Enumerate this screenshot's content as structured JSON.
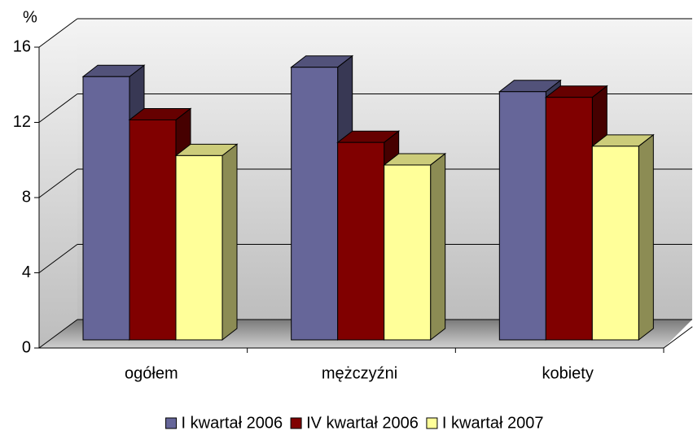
{
  "chart_data": {
    "type": "bar3d",
    "y_label": "%",
    "categories": [
      "ogółem",
      "mężczyźni",
      "kobiety"
    ],
    "series": [
      {
        "name": "I kwartał 2006",
        "color": "#666699",
        "values": [
          14.0,
          14.5,
          13.2
        ]
      },
      {
        "name": "IV kwartał 2006",
        "color": "#800000",
        "values": [
          11.7,
          10.5,
          12.9
        ]
      },
      {
        "name": "I kwartał 2007",
        "color": "#ffff99",
        "values": [
          9.8,
          9.3,
          10.3
        ]
      }
    ],
    "ylim": [
      0,
      16
    ],
    "yticks": [
      0,
      4,
      8,
      12,
      16
    ],
    "grid": true,
    "legend": "bottom"
  }
}
